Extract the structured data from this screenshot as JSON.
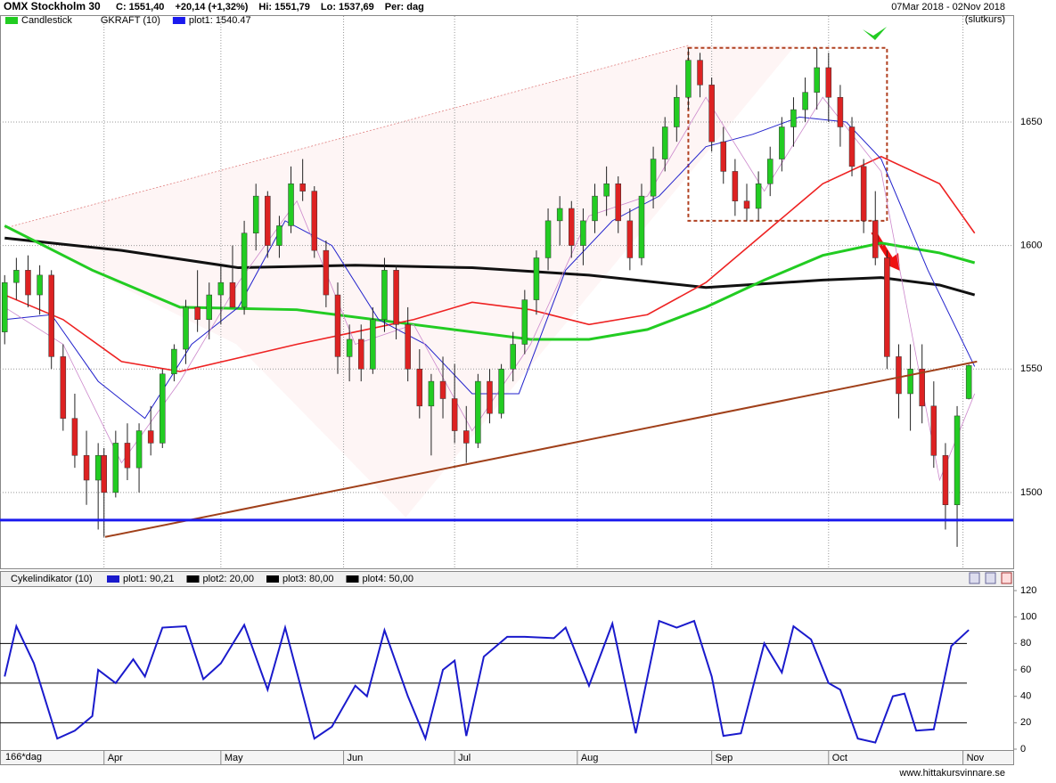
{
  "chart_data": [
    {
      "type": "candlestick",
      "title": "OMX Stockholm 30",
      "header": [
        "C: 1551,40",
        "+20,14 (+1,32%)",
        "Hi: 1551,79",
        "Lo: 1537,69",
        "Per: dag"
      ],
      "date_range": "07Mar 2018 - 02Nov 2018",
      "price_basis": "(slutkurs)",
      "legend": [
        "Candlestick",
        "GKRAFT (10)",
        "plot1: 1540.47"
      ],
      "up_color": "#22cc22",
      "down_color": "#dd2222",
      "xlim": [
        -0.8,
        172.6
      ],
      "ylim": [
        1469.3,
        1692.9
      ],
      "yticks": [
        1500,
        1550,
        1600,
        1650
      ],
      "xticks": [
        {
          "value": 17,
          "label": "Apr"
        },
        {
          "value": 37,
          "label": "May"
        },
        {
          "value": 58,
          "label": "Jun"
        },
        {
          "value": 77,
          "label": "Jul"
        },
        {
          "value": 98,
          "label": "Aug"
        },
        {
          "value": 121,
          "label": "Sep"
        },
        {
          "value": 141,
          "label": "Oct"
        },
        {
          "value": 164,
          "label": "Nov"
        }
      ],
      "grid": true,
      "candles": [
        [
          0,
          1565,
          1588,
          1560,
          1585
        ],
        [
          2,
          1585,
          1595,
          1578,
          1590
        ],
        [
          4,
          1590,
          1596,
          1575,
          1580
        ],
        [
          6,
          1580,
          1592,
          1572,
          1588
        ],
        [
          8,
          1588,
          1590,
          1550,
          1555
        ],
        [
          10,
          1555,
          1560,
          1525,
          1530
        ],
        [
          12,
          1530,
          1540,
          1510,
          1515
        ],
        [
          14,
          1515,
          1525,
          1495,
          1505
        ],
        [
          16,
          1505,
          1520,
          1485,
          1515
        ],
        [
          17,
          1515,
          1518,
          1482,
          1500
        ],
        [
          19,
          1500,
          1525,
          1498,
          1520
        ],
        [
          21,
          1520,
          1528,
          1505,
          1510
        ],
        [
          23,
          1510,
          1528,
          1500,
          1525
        ],
        [
          25,
          1525,
          1535,
          1515,
          1520
        ],
        [
          27,
          1520,
          1550,
          1518,
          1548
        ],
        [
          29,
          1548,
          1560,
          1545,
          1558
        ],
        [
          31,
          1558,
          1578,
          1552,
          1575
        ],
        [
          33,
          1575,
          1590,
          1565,
          1570
        ],
        [
          35,
          1570,
          1585,
          1562,
          1580
        ],
        [
          37,
          1580,
          1592,
          1568,
          1585
        ],
        [
          39,
          1585,
          1600,
          1575,
          1575
        ],
        [
          41,
          1575,
          1610,
          1572,
          1605
        ],
        [
          43,
          1605,
          1625,
          1598,
          1620
        ],
        [
          45,
          1620,
          1622,
          1595,
          1600
        ],
        [
          47,
          1600,
          1612,
          1595,
          1608
        ],
        [
          49,
          1608,
          1632,
          1605,
          1625
        ],
        [
          51,
          1625,
          1635,
          1618,
          1622
        ],
        [
          53,
          1622,
          1624,
          1595,
          1598
        ],
        [
          55,
          1598,
          1602,
          1575,
          1580
        ],
        [
          57,
          1580,
          1585,
          1548,
          1555
        ],
        [
          59,
          1555,
          1568,
          1545,
          1562
        ],
        [
          61,
          1562,
          1568,
          1545,
          1550
        ],
        [
          63,
          1550,
          1575,
          1548,
          1570
        ],
        [
          65,
          1570,
          1595,
          1565,
          1590
        ],
        [
          67,
          1590,
          1592,
          1562,
          1568
        ],
        [
          69,
          1568,
          1575,
          1545,
          1550
        ],
        [
          71,
          1550,
          1558,
          1530,
          1535
        ],
        [
          73,
          1535,
          1548,
          1515,
          1545
        ],
        [
          75,
          1545,
          1555,
          1530,
          1538
        ],
        [
          77,
          1538,
          1552,
          1520,
          1525
        ],
        [
          79,
          1525,
          1535,
          1512,
          1520
        ],
        [
          81,
          1520,
          1548,
          1518,
          1545
        ],
        [
          83,
          1545,
          1550,
          1528,
          1532
        ],
        [
          85,
          1532,
          1552,
          1530,
          1550
        ],
        [
          87,
          1550,
          1565,
          1545,
          1560
        ],
        [
          89,
          1560,
          1582,
          1556,
          1578
        ],
        [
          91,
          1578,
          1598,
          1572,
          1595
        ],
        [
          93,
          1595,
          1615,
          1590,
          1610
        ],
        [
          95,
          1610,
          1620,
          1600,
          1615
        ],
        [
          97,
          1615,
          1618,
          1595,
          1600
        ],
        [
          99,
          1600,
          1615,
          1592,
          1610
        ],
        [
          101,
          1610,
          1625,
          1605,
          1620
        ],
        [
          103,
          1620,
          1632,
          1612,
          1625
        ],
        [
          105,
          1625,
          1628,
          1605,
          1610
        ],
        [
          107,
          1610,
          1615,
          1590,
          1595
        ],
        [
          109,
          1595,
          1625,
          1592,
          1620
        ],
        [
          111,
          1620,
          1640,
          1615,
          1635
        ],
        [
          113,
          1635,
          1652,
          1630,
          1648
        ],
        [
          115,
          1648,
          1665,
          1642,
          1660
        ],
        [
          117,
          1660,
          1680,
          1655,
          1675
        ],
        [
          119,
          1675,
          1678,
          1660,
          1665
        ],
        [
          121,
          1665,
          1668,
          1638,
          1642
        ],
        [
          123,
          1642,
          1648,
          1625,
          1630
        ],
        [
          125,
          1630,
          1635,
          1612,
          1618
        ],
        [
          127,
          1618,
          1625,
          1610,
          1615
        ],
        [
          129,
          1615,
          1630,
          1610,
          1625
        ],
        [
          131,
          1625,
          1640,
          1620,
          1635
        ],
        [
          133,
          1635,
          1652,
          1630,
          1648
        ],
        [
          135,
          1648,
          1660,
          1640,
          1655
        ],
        [
          137,
          1655,
          1668,
          1650,
          1662
        ],
        [
          139,
          1662,
          1680,
          1655,
          1672
        ],
        [
          141,
          1672,
          1678,
          1650,
          1660
        ],
        [
          143,
          1660,
          1665,
          1640,
          1648
        ],
        [
          145,
          1648,
          1652,
          1628,
          1632
        ],
        [
          147,
          1632,
          1635,
          1605,
          1610
        ],
        [
          149,
          1610,
          1622,
          1592,
          1595
        ],
        [
          151,
          1595,
          1598,
          1550,
          1555
        ],
        [
          153,
          1555,
          1560,
          1530,
          1540
        ],
        [
          155,
          1540,
          1560,
          1525,
          1550
        ],
        [
          157,
          1550,
          1560,
          1528,
          1535
        ],
        [
          159,
          1535,
          1545,
          1510,
          1515
        ],
        [
          161,
          1515,
          1520,
          1485,
          1495
        ],
        [
          163,
          1495,
          1535,
          1478,
          1531
        ],
        [
          165,
          1538,
          1551.79,
          1537.69,
          1551.4
        ]
      ],
      "series": [
        {
          "color": "#111111",
          "width": 3,
          "x": [
            0,
            20,
            40,
            60,
            80,
            100,
            120,
            140,
            150,
            160,
            166
          ],
          "values": [
            1603,
            1598,
            1591,
            1592,
            1591,
            1588,
            1583,
            1586,
            1587,
            1584,
            1580
          ]
        },
        {
          "color": "#22cc22",
          "width": 3,
          "x": [
            0,
            15,
            30,
            50,
            70,
            90,
            100,
            110,
            120,
            130,
            140,
            150,
            160,
            166
          ],
          "values": [
            1608,
            1590,
            1575,
            1574,
            1568,
            1562,
            1562,
            1566,
            1575,
            1586,
            1596,
            1601,
            1597,
            1593
          ]
        },
        {
          "color": "#ee2222",
          "width": 1.6,
          "x": [
            0,
            10,
            20,
            30,
            50,
            70,
            80,
            90,
            100,
            110,
            120,
            130,
            140,
            150,
            160,
            166
          ],
          "values": [
            1580,
            1570,
            1553,
            1549,
            1560,
            1570,
            1577,
            1574,
            1568,
            1572,
            1585,
            1605,
            1625,
            1636,
            1625,
            1605
          ]
        },
        {
          "color": "#2222cc",
          "width": 1,
          "x": [
            0,
            8,
            16,
            24,
            32,
            40,
            48,
            56,
            64,
            72,
            80,
            88,
            96,
            104,
            112,
            120,
            128,
            136,
            144,
            150,
            158,
            166
          ],
          "values": [
            1570,
            1572,
            1545,
            1530,
            1560,
            1575,
            1610,
            1600,
            1570,
            1560,
            1540,
            1540,
            1590,
            1610,
            1620,
            1640,
            1645,
            1652,
            1650,
            1635,
            1590,
            1551
          ]
        },
        {
          "color": "#cc88cc",
          "width": 0.8,
          "x": [
            0,
            10,
            20,
            30,
            40,
            50,
            60,
            70,
            80,
            90,
            100,
            110,
            120,
            130,
            140,
            150,
            160,
            166
          ],
          "values": [
            1575,
            1560,
            1512,
            1545,
            1585,
            1618,
            1560,
            1568,
            1525,
            1560,
            1612,
            1620,
            1660,
            1622,
            1660,
            1630,
            1505,
            1540
          ]
        }
      ],
      "hline": {
        "color": "#1a1aee",
        "value": 1488.8
      },
      "trendline": {
        "color": "#a0401a",
        "x": [
          17.2,
          166.4
        ],
        "values": [
          1482,
          1553
        ]
      },
      "channel": {
        "color": "#e08080",
        "x": [
          0,
          117
        ],
        "values": [
          1607,
          1681
        ]
      },
      "box": {
        "color": "#b04020",
        "x": [
          117,
          151
        ],
        "values": [
          1610,
          1680
        ]
      }
    },
    {
      "type": "line",
      "title": "Cykelindikator (10)",
      "legend": [
        "plot1: 90,21",
        "plot2: 20,00",
        "plot3: 80,00",
        "plot4: 50,00"
      ],
      "xlim": [
        -0.8,
        172.6
      ],
      "ylim": [
        0,
        122.7
      ],
      "yticks": [
        0,
        20,
        40,
        60,
        80,
        100,
        120
      ],
      "period": "166*dag",
      "hlines": [
        20,
        80,
        50
      ],
      "series": [
        {
          "color": "#1a1acc",
          "x": [
            0,
            2,
            5,
            9,
            12,
            15,
            16,
            19,
            22,
            24,
            27,
            31,
            34,
            37,
            41,
            45,
            48,
            53,
            56,
            60,
            62,
            65,
            69,
            72,
            75,
            77,
            79,
            82,
            86,
            89,
            94,
            96,
            100,
            104,
            108,
            112,
            115,
            118,
            121,
            123,
            126,
            130,
            133,
            135,
            138,
            141,
            143,
            146,
            149,
            152,
            154,
            156,
            159,
            162,
            165
          ],
          "values": [
            55,
            93,
            65,
            8,
            14,
            25,
            60,
            50,
            68,
            55,
            92,
            93,
            53,
            65,
            94,
            45,
            92,
            8,
            17,
            48,
            40,
            90,
            40,
            8,
            60,
            67,
            10,
            70,
            85,
            85,
            84,
            92,
            48,
            95,
            12,
            97,
            92,
            97,
            55,
            10,
            12,
            80,
            58,
            93,
            83,
            50,
            45,
            8,
            5,
            40,
            42,
            14,
            15,
            78,
            90.21
          ]
        }
      ]
    },
    {
      "type": "footer",
      "text": "www.hittakursvinnare.se"
    }
  ]
}
